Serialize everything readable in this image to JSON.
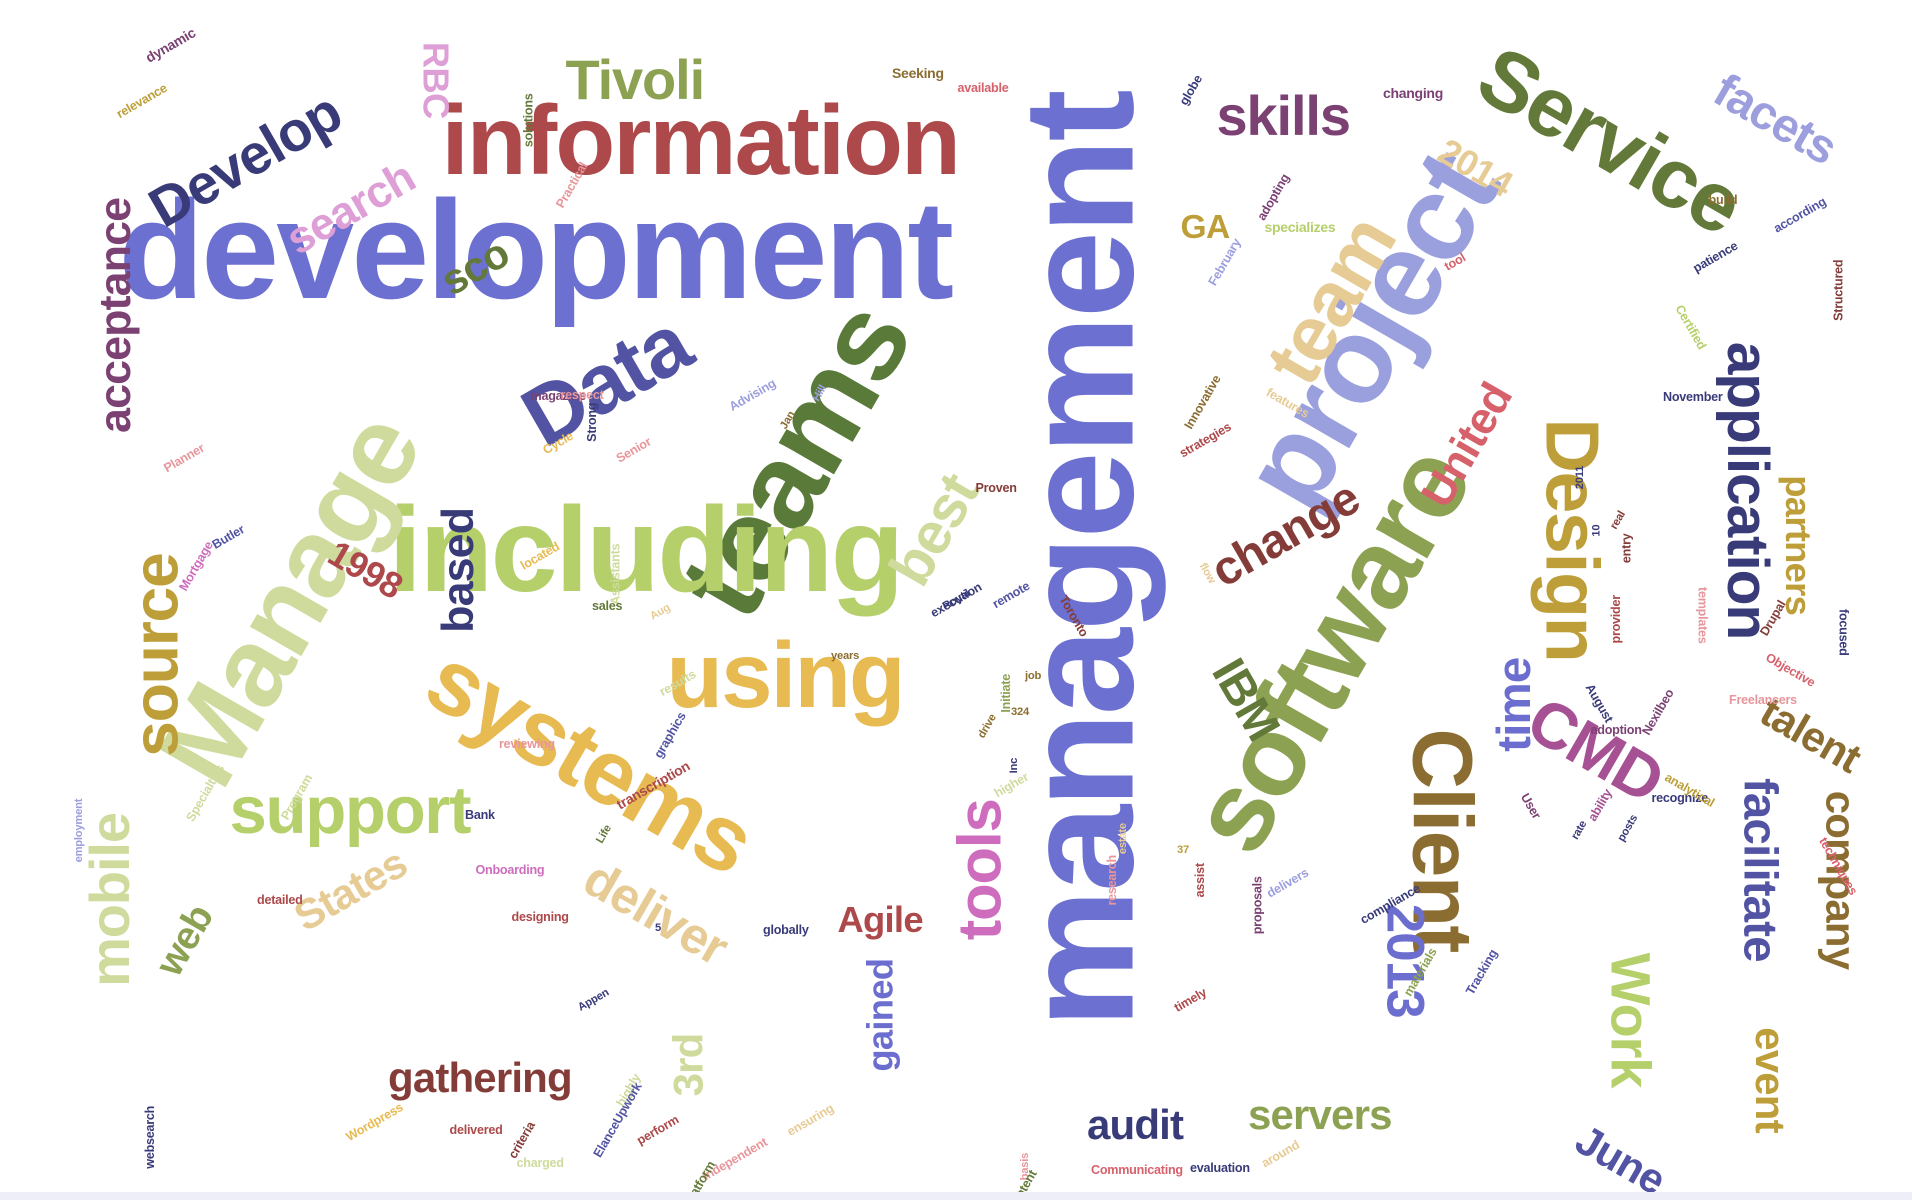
{
  "words": [
    {
      "text": "management",
      "color": "#6b70d1",
      "scale": 11.2,
      "rot": -90
    },
    {
      "text": "development",
      "color": "#6b70d1",
      "scale": 10.0,
      "rot": 0
    },
    {
      "text": "project",
      "color": "#9a9fdd",
      "scale": 8.6,
      "rot": -60
    },
    {
      "text": "teams",
      "color": "#5a7a3a",
      "scale": 8.6,
      "rot": -60
    },
    {
      "text": "including",
      "color": "#b5cf6b",
      "scale": 8.6,
      "rot": 0
    },
    {
      "text": "Manage",
      "color": "#cedb9c",
      "scale": 8.0,
      "rot": -60
    },
    {
      "text": "software",
      "color": "#8ca252",
      "scale": 8.0,
      "rot": -60
    },
    {
      "text": "information",
      "color": "#ad494a",
      "scale": 7.0,
      "rot": 0
    },
    {
      "text": "systems",
      "color": "#e7ba52",
      "scale": 6.6,
      "rot": 30
    },
    {
      "text": "using",
      "color": "#e7ba52",
      "scale": 6.6,
      "rot": 0
    },
    {
      "text": "Service",
      "color": "#637939",
      "scale": 6.0,
      "rot": 30
    },
    {
      "text": "Data",
      "color": "#5254a3",
      "scale": 6.0,
      "rot": -30
    },
    {
      "text": "Client",
      "color": "#8c6d31",
      "scale": 6.0,
      "rot": 90
    },
    {
      "text": "team",
      "color": "#e7cb94",
      "scale": 5.6,
      "rot": -60
    },
    {
      "text": "Design",
      "color": "#bd9e39",
      "scale": 5.4,
      "rot": 90
    },
    {
      "text": "support",
      "color": "#b5cf6b",
      "scale": 4.8,
      "rot": 0
    },
    {
      "text": "source",
      "color": "#bd9e39",
      "scale": 4.6,
      "rot": -90
    },
    {
      "text": "CMD",
      "color": "#a55194",
      "scale": 4.6,
      "rot": 30
    },
    {
      "text": "tools",
      "color": "#ce6dbd",
      "scale": 4.4,
      "rot": -90
    },
    {
      "text": "application",
      "color": "#393b79",
      "scale": 4.2,
      "rot": 90
    },
    {
      "text": "Develop",
      "color": "#393b79",
      "scale": 4.0,
      "rot": -30
    },
    {
      "text": "mobile",
      "color": "#cedb9c",
      "scale": 4.0,
      "rot": -90
    },
    {
      "text": "best",
      "color": "#cedb9c",
      "scale": 4.2,
      "rot": -60
    },
    {
      "text": "Tivoli",
      "color": "#8ca252",
      "scale": 4.0,
      "rot": 0
    },
    {
      "text": "skills",
      "color": "#7b4173",
      "scale": 4.0,
      "rot": 0
    },
    {
      "text": "deliver",
      "color": "#e7cb94",
      "scale": 3.6,
      "rot": 30
    },
    {
      "text": "Work",
      "color": "#b5cf6b",
      "scale": 4.0,
      "rot": 90
    },
    {
      "text": "2013",
      "color": "#6b6ecf",
      "scale": 3.8,
      "rot": 90
    },
    {
      "text": "facilitate",
      "color": "#5254a3",
      "scale": 3.4,
      "rot": 90
    },
    {
      "text": "change",
      "color": "#843c39",
      "scale": 3.4,
      "rot": -30
    },
    {
      "text": "time",
      "color": "#6b6ecf",
      "scale": 3.4,
      "rot": -90
    },
    {
      "text": "IBM",
      "color": "#637939",
      "scale": 3.4,
      "rot": 60
    },
    {
      "text": "acceptance",
      "color": "#7b4173",
      "scale": 3.2,
      "rot": -90
    },
    {
      "text": "facets",
      "color": "#9c9ede",
      "scale": 3.4,
      "rot": 30
    },
    {
      "text": "United",
      "color": "#d6616b",
      "scale": 3.2,
      "rot": -60
    },
    {
      "text": "based",
      "color": "#393b79",
      "scale": 3.2,
      "rot": -90
    },
    {
      "text": "search",
      "color": "#de9ed6",
      "scale": 3.2,
      "rot": -30
    },
    {
      "text": "gathering",
      "color": "#843c39",
      "scale": 3.0,
      "rot": 0
    },
    {
      "text": "servers",
      "color": "#8ca252",
      "scale": 3.0,
      "rot": 0
    },
    {
      "text": "company",
      "color": "#8c6d31",
      "scale": 3.0,
      "rot": 90
    },
    {
      "text": "audit",
      "color": "#393b79",
      "scale": 3.0,
      "rot": 0
    },
    {
      "text": "talent",
      "color": "#8c6d31",
      "scale": 3.0,
      "rot": 30
    },
    {
      "text": "States",
      "color": "#e7cb94",
      "scale": 3.0,
      "rot": -30
    },
    {
      "text": "June",
      "color": "#5254a3",
      "scale": 3.0,
      "rot": 30
    },
    {
      "text": "event",
      "color": "#bd9e39",
      "scale": 3.0,
      "rot": 90
    },
    {
      "text": "partners",
      "color": "#bd9e39",
      "scale": 2.6,
      "rot": 90
    },
    {
      "text": "sco",
      "color": "#637939",
      "scale": 3.0,
      "rot": -30
    },
    {
      "text": "3rd",
      "color": "#cedb9c",
      "scale": 3.0,
      "rot": -90
    },
    {
      "text": "web",
      "color": "#8ca252",
      "scale": 2.8,
      "rot": -60
    },
    {
      "text": "Agile",
      "color": "#ad494a",
      "scale": 2.6,
      "rot": 0
    },
    {
      "text": "1998",
      "color": "#ad494a",
      "scale": 2.6,
      "rot": 30
    },
    {
      "text": "gained",
      "color": "#6b6ecf",
      "scale": 2.6,
      "rot": -90
    },
    {
      "text": "2014",
      "color": "#e7cb94",
      "scale": 2.6,
      "rot": 30
    },
    {
      "text": "RBC",
      "color": "#de9ed6",
      "scale": 2.6,
      "rot": 90
    },
    {
      "text": "GA",
      "color": "#bd9e39",
      "scale": 2.4,
      "rot": 0
    },
    {
      "text": "Seeking",
      "color": "#8c6d31",
      "scale": 1.0,
      "rot": 0
    },
    {
      "text": "dynamic",
      "color": "#7b4173",
      "scale": 1.0,
      "rot": -30
    },
    {
      "text": "relevance",
      "color": "#bd9e39",
      "scale": 0.9,
      "rot": -30
    },
    {
      "text": "available",
      "color": "#d6616b",
      "scale": 0.9,
      "rot": 0
    },
    {
      "text": "solutions",
      "color": "#637939",
      "scale": 0.9,
      "rot": -90
    },
    {
      "text": "Practical",
      "color": "#e7969c",
      "scale": 0.9,
      "rot": -60
    },
    {
      "text": "globe",
      "color": "#393b79",
      "scale": 0.9,
      "rot": -60
    },
    {
      "text": "changing",
      "color": "#7b4173",
      "scale": 1.0,
      "rot": 0
    },
    {
      "text": "specializes",
      "color": "#b5cf6b",
      "scale": 1.0,
      "rot": 0
    },
    {
      "text": "adopting",
      "color": "#7b4173",
      "scale": 0.9,
      "rot": -60
    },
    {
      "text": "tool",
      "color": "#d6616b",
      "scale": 0.9,
      "rot": -30
    },
    {
      "text": "February",
      "color": "#9c9ede",
      "scale": 0.9,
      "rot": -60
    },
    {
      "text": "build",
      "color": "#8c6d31",
      "scale": 0.9,
      "rot": 0
    },
    {
      "text": "patience",
      "color": "#393b79",
      "scale": 0.9,
      "rot": -30
    },
    {
      "text": "according",
      "color": "#5254a3",
      "scale": 0.9,
      "rot": -30
    },
    {
      "text": "Structured",
      "color": "#843c39",
      "scale": 0.9,
      "rot": -90
    },
    {
      "text": "Certified",
      "color": "#b5cf6b",
      "scale": 0.9,
      "rot": 60
    },
    {
      "text": "November",
      "color": "#393b79",
      "scale": 0.9,
      "rot": 0
    },
    {
      "text": "Innovative",
      "color": "#8c6d31",
      "scale": 0.9,
      "rot": -60
    },
    {
      "text": "features",
      "color": "#e7cb94",
      "scale": 0.9,
      "rot": 30
    },
    {
      "text": "Advising",
      "color": "#9c9ede",
      "scale": 0.9,
      "rot": -30
    },
    {
      "text": "Jan",
      "color": "#8c6d31",
      "scale": 0.8,
      "rot": -60
    },
    {
      "text": "Hill",
      "color": "#9c9ede",
      "scale": 0.8,
      "rot": -60
    },
    {
      "text": "magazine",
      "color": "#7b4173",
      "scale": 0.9,
      "rot": 0
    },
    {
      "text": "respect",
      "color": "#e7969c",
      "scale": 0.9,
      "rot": 0
    },
    {
      "text": "Strong",
      "color": "#393b79",
      "scale": 0.9,
      "rot": -90
    },
    {
      "text": "Cycle",
      "color": "#e7ba52",
      "scale": 0.9,
      "rot": -30
    },
    {
      "text": "Planner",
      "color": "#e7969c",
      "scale": 0.9,
      "rot": -30
    },
    {
      "text": "Senior",
      "color": "#e7969c",
      "scale": 0.9,
      "rot": -30
    },
    {
      "text": "strategies",
      "color": "#ad494a",
      "scale": 0.9,
      "rot": -30
    },
    {
      "text": "2011",
      "color": "#393b79",
      "scale": 0.8,
      "rot": -90
    },
    {
      "text": "Proven",
      "color": "#843c39",
      "scale": 0.9,
      "rot": 0
    },
    {
      "text": "Butler",
      "color": "#5254a3",
      "scale": 0.9,
      "rot": -30
    },
    {
      "text": "Mortgage",
      "color": "#ce6dbd",
      "scale": 0.9,
      "rot": -60
    },
    {
      "text": "Assistants",
      "color": "#cedb9c",
      "scale": 0.9,
      "rot": -90
    },
    {
      "text": "located",
      "color": "#e7ba52",
      "scale": 0.9,
      "rot": -30
    },
    {
      "text": "sales",
      "color": "#637939",
      "scale": 0.9,
      "rot": 0
    },
    {
      "text": "Aug",
      "color": "#e7cb94",
      "scale": 0.8,
      "rot": -30
    },
    {
      "text": "remote",
      "color": "#5254a3",
      "scale": 0.9,
      "rot": -30
    },
    {
      "text": "Toronto",
      "color": "#843c39",
      "scale": 0.9,
      "rot": 60
    },
    {
      "text": "entry",
      "color": "#843c39",
      "scale": 0.9,
      "rot": -90
    },
    {
      "text": "real",
      "color": "#843c39",
      "scale": 0.8,
      "rot": -60
    },
    {
      "text": "10",
      "color": "#393b79",
      "scale": 0.8,
      "rot": -90
    },
    {
      "text": "flow",
      "color": "#e7cb94",
      "scale": 0.8,
      "rot": 60
    },
    {
      "text": "provider",
      "color": "#ad494a",
      "scale": 0.9,
      "rot": -90
    },
    {
      "text": "templates",
      "color": "#e7969c",
      "scale": 0.9,
      "rot": 90
    },
    {
      "text": "Drupal",
      "color": "#843c39",
      "scale": 0.9,
      "rot": -60
    },
    {
      "text": "focused",
      "color": "#393b79",
      "scale": 0.9,
      "rot": 90
    },
    {
      "text": "Objective",
      "color": "#d6616b",
      "scale": 0.9,
      "rot": 30
    },
    {
      "text": "Freelancers",
      "color": "#e7969c",
      "scale": 0.9,
      "rot": 0
    },
    {
      "text": "August",
      "color": "#393b79",
      "scale": 0.9,
      "rot": 60
    },
    {
      "text": "Nexilbeo",
      "color": "#7b4173",
      "scale": 0.9,
      "rot": -60
    },
    {
      "text": "adoption",
      "color": "#7b4173",
      "scale": 0.9,
      "rot": 0
    },
    {
      "text": "posts",
      "color": "#393b79",
      "scale": 0.8,
      "rot": -60
    },
    {
      "text": "User",
      "color": "#7b4173",
      "scale": 0.9,
      "rot": 60
    },
    {
      "text": "ability",
      "color": "#a55194",
      "scale": 0.9,
      "rot": -60
    },
    {
      "text": "rate",
      "color": "#393b79",
      "scale": 0.8,
      "rot": -60
    },
    {
      "text": "recognize",
      "color": "#393b79",
      "scale": 0.9,
      "rot": 0
    },
    {
      "text": "analytical",
      "color": "#bd9e39",
      "scale": 0.9,
      "rot": 30
    },
    {
      "text": "techniques",
      "color": "#d6616b",
      "scale": 0.9,
      "rot": 60
    },
    {
      "text": "years",
      "color": "#8c6d31",
      "scale": 0.8,
      "rot": 0
    },
    {
      "text": "Initiate",
      "color": "#8ca252",
      "scale": 0.9,
      "rot": -90
    },
    {
      "text": "job",
      "color": "#8c6d31",
      "scale": 0.8,
      "rot": 0
    },
    {
      "text": "324",
      "color": "#8c6d31",
      "scale": 0.8,
      "rot": 0
    },
    {
      "text": "drive",
      "color": "#8c6d31",
      "scale": 0.8,
      "rot": -60
    },
    {
      "text": "Inc",
      "color": "#393b79",
      "scale": 0.8,
      "rot": -90
    },
    {
      "text": "higher",
      "color": "#cedb9c",
      "scale": 0.9,
      "rot": -30
    },
    {
      "text": "results",
      "color": "#cedb9c",
      "scale": 0.9,
      "rot": -30
    },
    {
      "text": "graphics",
      "color": "#5254a3",
      "scale": 0.9,
      "rot": -60
    },
    {
      "text": "transcription",
      "color": "#ad494a",
      "scale": 1.0,
      "rot": -30
    },
    {
      "text": "reviewing",
      "color": "#e7969c",
      "scale": 0.9,
      "rot": 0
    },
    {
      "text": "Specialties",
      "color": "#cedb9c",
      "scale": 0.9,
      "rot": -60
    },
    {
      "text": "Program",
      "color": "#cedb9c",
      "scale": 0.9,
      "rot": -60
    },
    {
      "text": "employment",
      "color": "#9c9ede",
      "scale": 0.8,
      "rot": -90
    },
    {
      "text": "Bank",
      "color": "#393b79",
      "scale": 0.9,
      "rot": 0
    },
    {
      "text": "Life",
      "color": "#637939",
      "scale": 0.8,
      "rot": -60
    },
    {
      "text": "Onboarding",
      "color": "#ce6dbd",
      "scale": 0.9,
      "rot": 0
    },
    {
      "text": "detailed",
      "color": "#ad494a",
      "scale": 0.9,
      "rot": 0
    },
    {
      "text": "designing",
      "color": "#ad494a",
      "scale": 0.9,
      "rot": 0
    },
    {
      "text": "5",
      "color": "#393b79",
      "scale": 0.8,
      "rot": 0
    },
    {
      "text": "globally",
      "color": "#393b79",
      "scale": 0.9,
      "rot": 0
    },
    {
      "text": "estate",
      "color": "#e7cb94",
      "scale": 0.8,
      "rot": -90
    },
    {
      "text": "37",
      "color": "#bd9e39",
      "scale": 0.8,
      "rot": 0
    },
    {
      "text": "research",
      "color": "#e7969c",
      "scale": 0.9,
      "rot": -90
    },
    {
      "text": "assist",
      "color": "#ad494a",
      "scale": 0.9,
      "rot": -90
    },
    {
      "text": "proposals",
      "color": "#7b4173",
      "scale": 0.9,
      "rot": -90
    },
    {
      "text": "delivers",
      "color": "#9c9ede",
      "scale": 0.9,
      "rot": -30
    },
    {
      "text": "compliance",
      "color": "#393b79",
      "scale": 0.9,
      "rot": -30
    },
    {
      "text": "materials",
      "color": "#8ca252",
      "scale": 0.9,
      "rot": -60
    },
    {
      "text": "Tracking",
      "color": "#5254a3",
      "scale": 0.9,
      "rot": -60
    },
    {
      "text": "timely",
      "color": "#ad494a",
      "scale": 0.9,
      "rot": -30
    },
    {
      "text": "Appen",
      "color": "#393b79",
      "scale": 0.8,
      "rot": -30
    },
    {
      "text": "highly",
      "color": "#cedb9c",
      "scale": 0.9,
      "rot": -60
    },
    {
      "text": "ElanceUpwork",
      "color": "#5254a3",
      "scale": 0.9,
      "rot": -60
    },
    {
      "text": "perform",
      "color": "#ad494a",
      "scale": 0.9,
      "rot": -30
    },
    {
      "text": "criteria",
      "color": "#843c39",
      "scale": 0.9,
      "rot": -60
    },
    {
      "text": "websearch",
      "color": "#393b79",
      "scale": 0.9,
      "rot": -90
    },
    {
      "text": "Wordpress",
      "color": "#e7ba52",
      "scale": 0.9,
      "rot": -30
    },
    {
      "text": "delivered",
      "color": "#ad494a",
      "scale": 0.9,
      "rot": 0
    },
    {
      "text": "charged",
      "color": "#cedb9c",
      "scale": 0.9,
      "rot": 0
    },
    {
      "text": "Independent",
      "color": "#e7969c",
      "scale": 0.9,
      "rot": -30
    },
    {
      "text": "platform",
      "color": "#637939",
      "scale": 0.9,
      "rot": -60
    },
    {
      "text": "ensuring",
      "color": "#e7cb94",
      "scale": 0.9,
      "rot": -30
    },
    {
      "text": "basis",
      "color": "#e7969c",
      "scale": 0.8,
      "rot": -90
    },
    {
      "text": "content",
      "color": "#637939",
      "scale": 0.9,
      "rot": -60
    },
    {
      "text": "Communicating",
      "color": "#d6616b",
      "scale": 0.9,
      "rot": 0
    },
    {
      "text": "evaluation",
      "color": "#393b79",
      "scale": 0.9,
      "rot": 0
    },
    {
      "text": "around",
      "color": "#e7cb94",
      "scale": 0.9,
      "rot": -30
    },
    {
      "text": "Royal",
      "color": "#393b79",
      "scale": 0.8,
      "rot": -30
    },
    {
      "text": "execution",
      "color": "#393b79",
      "scale": 0.9,
      "rot": -30
    }
  ]
}
